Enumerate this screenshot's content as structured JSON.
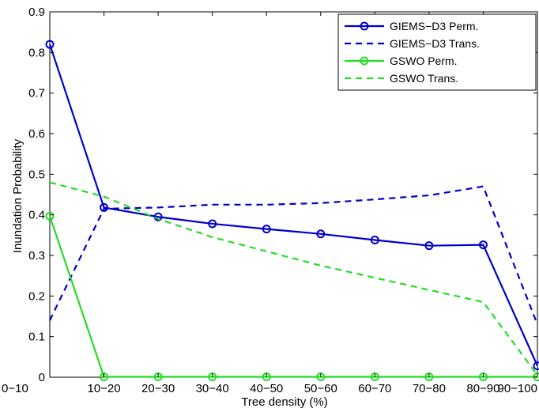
{
  "chart_data": {
    "type": "line",
    "title": "",
    "xlabel": "Tree density (%)",
    "ylabel": "Inundation Probability",
    "categories": [
      "0−10",
      "10−20",
      "20−30",
      "30−40",
      "40−50",
      "50−60",
      "60−70",
      "70−80",
      "80−90",
      "90−100"
    ],
    "ylim": [
      0,
      0.9
    ],
    "yticks": [
      "0",
      "0.1",
      "0.2",
      "0.3",
      "0.4",
      "0.5",
      "0.6",
      "0.7",
      "0.8",
      "0.9"
    ],
    "grid": false,
    "legend_position": "top-right",
    "series": [
      {
        "name": "GIEMS−D3 Perm.",
        "color": "#0000cc",
        "style": "solid",
        "marker": "circle",
        "values": [
          0.82,
          0.418,
          0.395,
          0.378,
          0.365,
          0.353,
          0.338,
          0.324,
          0.326,
          0.028
        ]
      },
      {
        "name": "GIEMS−D3 Trans.",
        "color": "#0000cc",
        "style": "dashed",
        "marker": "none",
        "values": [
          0.14,
          0.415,
          0.418,
          0.425,
          0.425,
          0.429,
          0.438,
          0.448,
          0.47,
          0.13
        ]
      },
      {
        "name": "GSWO Perm.",
        "color": "#22dd22",
        "style": "solid",
        "marker": "circle",
        "values": [
          0.397,
          0.001,
          0.001,
          0.001,
          0.001,
          0.001,
          0.001,
          0.001,
          0.001,
          0.001
        ]
      },
      {
        "name": "GSWO Trans.",
        "color": "#22dd22",
        "style": "dashed",
        "marker": "none",
        "values": [
          0.48,
          0.445,
          0.39,
          0.345,
          0.31,
          0.275,
          0.245,
          0.215,
          0.185,
          0.005
        ]
      }
    ]
  }
}
